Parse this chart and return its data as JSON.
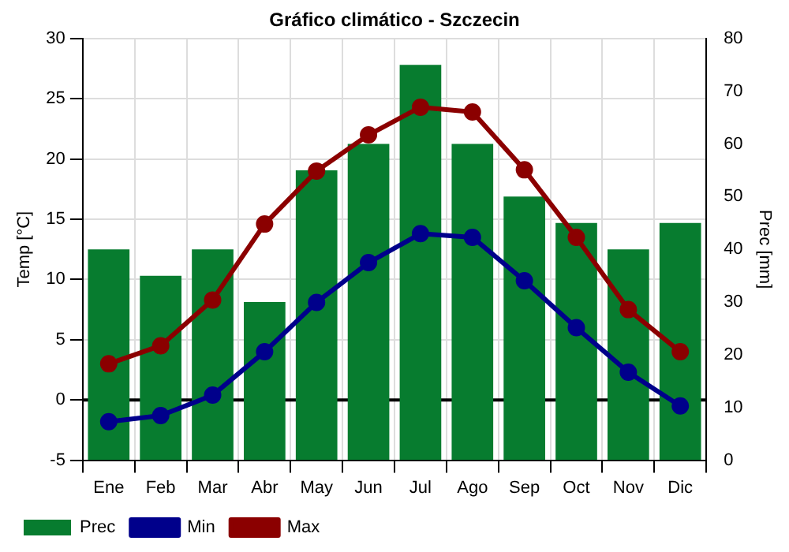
{
  "chart_data": {
    "type": "bar",
    "title": "Gráfico climático - Szczecin",
    "ylabel": "Temp [°C]",
    "y2label": "Prec [mm]",
    "categories": [
      "Ene",
      "Feb",
      "Mar",
      "Abr",
      "May",
      "Jun",
      "Jul",
      "Ago",
      "Sep",
      "Oct",
      "Nov",
      "Dic"
    ],
    "series": [
      {
        "name": "Prec",
        "axis": "y2",
        "color": "#077c2f",
        "values": [
          40,
          35,
          40,
          30,
          55,
          60,
          75,
          60,
          50,
          45,
          40,
          45
        ]
      },
      {
        "name": "Min",
        "type": "line",
        "color": "#00008b",
        "values": [
          -1.8,
          -1.3,
          0.4,
          4.0,
          8.1,
          11.4,
          13.8,
          13.5,
          9.9,
          6.0,
          2.3,
          -0.5
        ]
      },
      {
        "name": "Max",
        "type": "line",
        "color": "#8b0000",
        "values": [
          3.0,
          4.5,
          8.3,
          14.6,
          19.0,
          22.0,
          24.3,
          23.9,
          19.1,
          13.5,
          7.5,
          4.0
        ]
      }
    ],
    "ylim": [
      -5,
      30
    ],
    "yticks": [
      -5,
      0,
      5,
      10,
      15,
      20,
      25,
      30
    ],
    "y2lim": [
      0,
      80
    ],
    "y2ticks": [
      0,
      10,
      20,
      30,
      40,
      50,
      60,
      70,
      80
    ],
    "ref_lines": [
      {
        "axis": "y",
        "value": 0,
        "color": "#000000"
      }
    ],
    "grid": true,
    "legend": "bottom left",
    "marker": "circle"
  }
}
